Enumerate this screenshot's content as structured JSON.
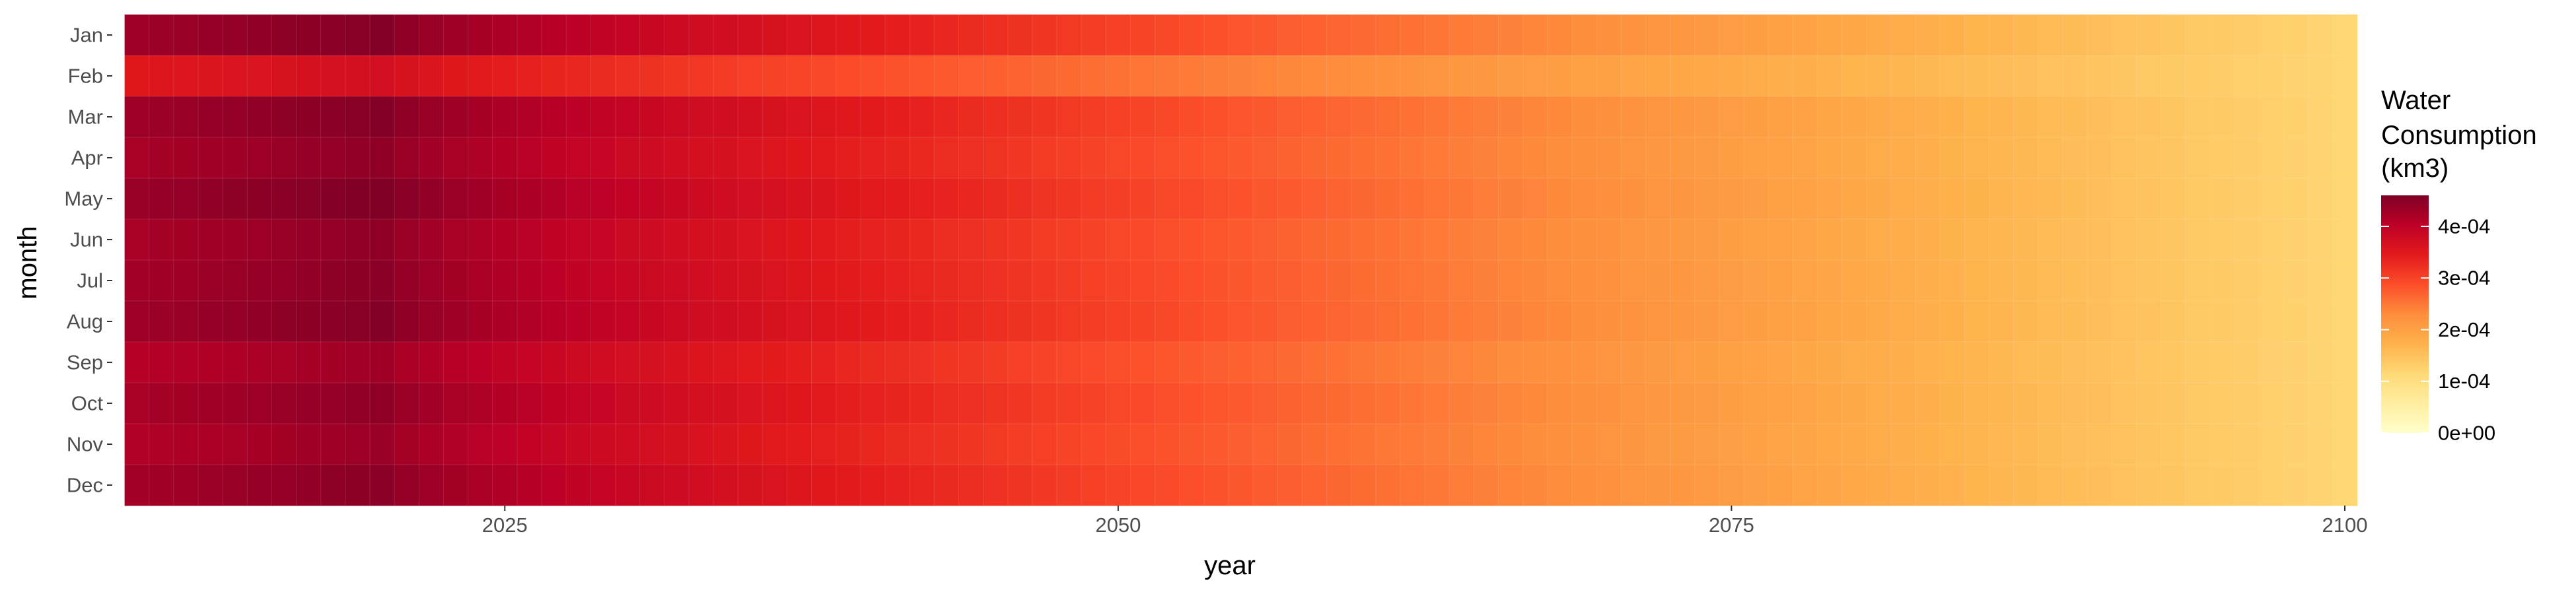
{
  "chart_data": {
    "type": "heatmap",
    "x_label": "year",
    "y_label": "month",
    "x_range": [
      2009,
      2100
    ],
    "x_ticks": [
      "2025",
      "2050",
      "2075",
      "2100"
    ],
    "months": [
      "Jan",
      "Feb",
      "Mar",
      "Apr",
      "May",
      "Jun",
      "Jul",
      "Aug",
      "Sep",
      "Oct",
      "Nov",
      "Dec"
    ],
    "start_year": 2010,
    "end_year": 2100,
    "value_model": {
      "peak_year": 2020,
      "end_value": 0.00012,
      "month_peaks": [
        0.000455,
        0.00037,
        0.000455,
        0.000445,
        0.00046,
        0.000445,
        0.00045,
        0.000455,
        0.00043,
        0.000445,
        0.000435,
        0.00045
      ]
    },
    "legend": {
      "title_lines": [
        "Water",
        "Consumption",
        "(km3)"
      ],
      "labels": [
        "4e-04",
        "3e-04",
        "2e-04",
        "1e-04",
        "0e+00"
      ],
      "label_values": [
        0.0004,
        0.0003,
        0.0002,
        0.0001,
        0.0
      ],
      "range": [
        0,
        0.00046
      ]
    },
    "colors": [
      "#ffffcc",
      "#ffeda0",
      "#fed976",
      "#feb24c",
      "#fd8d3c",
      "#fc4e2a",
      "#e31a1c",
      "#bd0026",
      "#800026"
    ],
    "grid": true,
    "legend_position": "right"
  }
}
